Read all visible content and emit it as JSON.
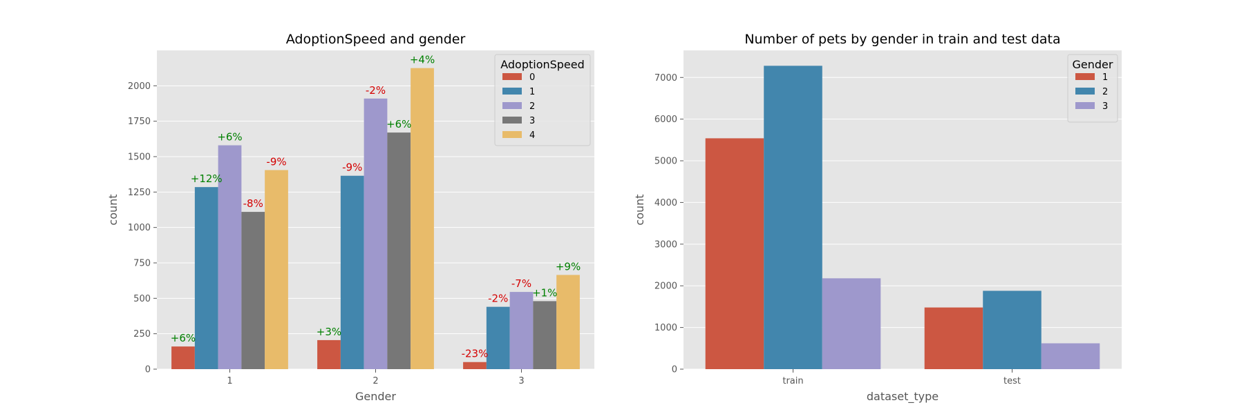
{
  "colors": {
    "plot_bg": "#e5e5e5",
    "grid": "#ffffff",
    "tick_text": "#555555",
    "title_text": "#000000",
    "positive": "#008000",
    "negative": "#d40000",
    "series": [
      "#cc5742",
      "#4286ad",
      "#9e98cc",
      "#777777",
      "#e8bb6a"
    ]
  },
  "chart_data": [
    {
      "type": "bar",
      "title": "AdoptionSpeed and gender",
      "xlabel": "Gender",
      "ylabel": "count",
      "ylim": [
        0,
        2250
      ],
      "yticks": [
        0,
        250,
        500,
        750,
        1000,
        1250,
        1500,
        1750,
        2000
      ],
      "grid": true,
      "categories": [
        "1",
        "2",
        "3"
      ],
      "legend": {
        "title": "AdoptionSpeed",
        "placement": "top-right"
      },
      "series": [
        {
          "name": "0",
          "values": [
            160,
            205,
            50
          ],
          "labels": [
            "+6%",
            "+3%",
            "-23%"
          ]
        },
        {
          "name": "1",
          "values": [
            1285,
            1365,
            440
          ],
          "labels": [
            "+12%",
            "-9%",
            "-2%"
          ]
        },
        {
          "name": "2",
          "values": [
            1580,
            1910,
            545
          ],
          "labels": [
            "+6%",
            "-2%",
            "-7%"
          ]
        },
        {
          "name": "3",
          "values": [
            1110,
            1670,
            480
          ],
          "labels": [
            "-8%",
            "+6%",
            "+1%"
          ]
        },
        {
          "name": "4",
          "values": [
            1405,
            2125,
            665
          ],
          "labels": [
            "-9%",
            "+4%",
            "+9%"
          ]
        }
      ]
    },
    {
      "type": "bar",
      "title": "Number of pets by gender in train and test data",
      "xlabel": "dataset_type",
      "ylabel": "count",
      "ylim": [
        0,
        7650
      ],
      "yticks": [
        0,
        1000,
        2000,
        3000,
        4000,
        5000,
        6000,
        7000
      ],
      "grid": true,
      "categories": [
        "train",
        "test"
      ],
      "legend": {
        "title": "Gender",
        "placement": "top-right"
      },
      "series": [
        {
          "name": "1",
          "values": [
            5540,
            1480
          ]
        },
        {
          "name": "2",
          "values": [
            7280,
            1880
          ]
        },
        {
          "name": "3",
          "values": [
            2180,
            620
          ]
        }
      ]
    }
  ]
}
